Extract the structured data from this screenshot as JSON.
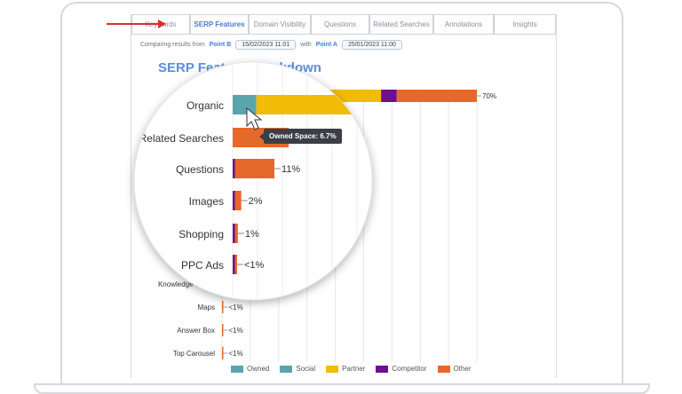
{
  "tabs": [
    "Keywords",
    "SERP Features",
    "Domain Visibility",
    "Questions",
    "Related Searches",
    "Annotations",
    "Insights"
  ],
  "active_tab": "SERP Features",
  "compare": {
    "label": "Comparing results from",
    "point_b_label": "Point B",
    "point_b_date": "15/02/2023 11:01",
    "with_label": "with",
    "point_a_label": "Point A",
    "point_a_date": "25/01/2023 11:00"
  },
  "tooltip": "Owned Space: 6.7%",
  "colors": {
    "Owned": "#5aa5ad",
    "Social": "#5aa5ad",
    "Partner": "#f2bb05",
    "Competitor": "#6d0f8f",
    "Other": "#e5692a"
  },
  "chart_data": {
    "type": "bar",
    "orientation": "horizontal-stacked",
    "title": "SERP Feature Breakdown",
    "categories": [
      "Organic",
      "Related Searches",
      "Questions",
      "Images",
      "Shopping",
      "PPC Ads",
      "Knowledge Graph",
      "Maps",
      "Answer Box",
      "Top Carousel"
    ],
    "data_labels": [
      "70%",
      "",
      "11%",
      "2%",
      "1%",
      "<1%",
      "",
      "<1%",
      "<1%",
      "<1%"
    ],
    "series": [
      {
        "name": "Owned",
        "values": [
          4.7,
          0,
          0,
          0,
          0,
          0,
          0,
          0,
          0,
          0
        ]
      },
      {
        "name": "Social",
        "values": [
          0,
          0,
          0,
          0,
          0,
          0,
          0,
          0,
          0,
          0
        ]
      },
      {
        "name": "Partner",
        "values": [
          39.0,
          0,
          0,
          0,
          0,
          0,
          0,
          0,
          0,
          0
        ]
      },
      {
        "name": "Competitor",
        "values": [
          4.3,
          0,
          0.4,
          0.3,
          0.2,
          0.3,
          0,
          0,
          0,
          0
        ]
      },
      {
        "name": "Other",
        "values": [
          22.0,
          15.0,
          10.6,
          1.7,
          0.8,
          0.4,
          0.3,
          0.2,
          0.2,
          0.2
        ]
      }
    ],
    "xlim": [
      0,
      70
    ],
    "grid": true,
    "legend": [
      "Owned",
      "Social",
      "Partner",
      "Competitor",
      "Other"
    ],
    "legend_position": "bottom"
  }
}
